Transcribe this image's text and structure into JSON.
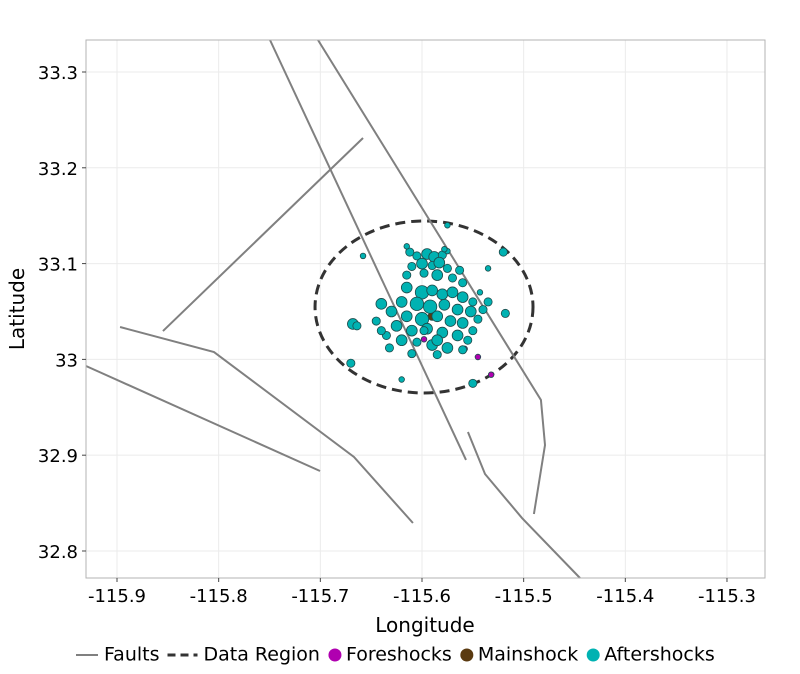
{
  "chart_data": {
    "type": "scatter",
    "xlabel": "Longitude",
    "ylabel": "Latitude",
    "xlim": [
      -115.9305,
      -115.2626
    ],
    "ylim": [
      32.7718,
      33.3334
    ],
    "xticks": [
      -115.9,
      -115.8,
      -115.7,
      -115.6,
      -115.5,
      -115.4,
      -115.3
    ],
    "yticks": [
      32.8,
      32.9,
      33,
      33.1,
      33.2,
      33.3
    ],
    "grid": true,
    "legend": "bottom",
    "series": [
      {
        "name": "Faults",
        "kind": "line",
        "color": "#808080",
        "lines": [
          {
            "x": [
              -115.7495,
              -115.5567
            ],
            "y": [
              33.3334,
              32.895
            ]
          },
          {
            "x": [
              -115.7023,
              -115.483,
              -115.479,
              -115.4899
            ],
            "y": [
              33.3334,
              32.9576,
              32.9106,
              32.8386
            ]
          },
          {
            "x": [
              -115.8548,
              -115.658
            ],
            "y": [
              33.0296,
              33.2311
            ]
          },
          {
            "x": [
              -115.897,
              -115.8046,
              -115.6669,
              -115.6089
            ],
            "y": [
              33.0338,
              33.0077,
              32.8981,
              32.8292
            ]
          },
          {
            "x": [
              -115.9305,
              -115.7003
            ],
            "y": [
              32.9931,
              32.8835
            ]
          },
          {
            "x": [
              -115.5548,
              -115.538,
              -115.5016,
              -115.4446
            ],
            "y": [
              32.9242,
              32.8804,
              32.8344,
              32.7718
            ]
          }
        ]
      },
      {
        "name": "Data Region",
        "kind": "ellipse",
        "color": "#333333",
        "center": [
          -115.598,
          33.0547
        ],
        "radius_x": 0.1072,
        "radius_y": 0.0898
      },
      {
        "name": "Foreshocks",
        "kind": "points",
        "color": "#b000b0",
        "x": [
          -115.545,
          -115.558,
          -115.532,
          -115.598
        ],
        "y": [
          33.0025,
          33.011,
          32.984,
          33.021
        ],
        "size": [
          1,
          1,
          1,
          1
        ]
      },
      {
        "name": "Mainshock",
        "kind": "points",
        "color": "#5a3a10",
        "x": [
          -115.59
        ],
        "y": [
          33.045
        ],
        "size": [
          2
        ]
      },
      {
        "name": "Aftershocks",
        "kind": "points",
        "color": "#00b2b2",
        "x": [
          -115.605,
          -115.595,
          -115.588,
          -115.58,
          -115.6,
          -115.59,
          -115.583,
          -115.61,
          -115.575,
          -115.598,
          -115.585,
          -115.57,
          -115.612,
          -115.575,
          -115.615,
          -115.6,
          -115.59,
          -115.58,
          -115.57,
          -115.56,
          -115.55,
          -115.62,
          -115.605,
          -115.592,
          -115.578,
          -115.565,
          -115.552,
          -115.63,
          -115.615,
          -115.6,
          -115.585,
          -115.572,
          -115.56,
          -115.545,
          -115.625,
          -115.61,
          -115.595,
          -115.58,
          -115.565,
          -115.55,
          -115.62,
          -115.605,
          -115.59,
          -115.575,
          -115.56,
          -115.585,
          -115.64,
          -115.645,
          -115.635,
          -115.632,
          -115.54,
          -115.535,
          -115.543,
          -115.56,
          -115.668,
          -115.664,
          -115.67,
          -115.658,
          -115.615,
          -115.64,
          -115.615,
          -115.575,
          -115.52,
          -115.518,
          -115.535,
          -115.55,
          -115.62,
          -115.598,
          -115.585,
          -115.555,
          -115.563,
          -115.578,
          -115.61
        ],
        "y": [
          33.108,
          33.11,
          33.107,
          33.109,
          33.1,
          33.098,
          33.101,
          33.097,
          33.095,
          33.09,
          33.088,
          33.085,
          33.112,
          33.113,
          33.075,
          33.07,
          33.072,
          33.068,
          33.07,
          33.065,
          33.06,
          33.06,
          33.058,
          33.055,
          33.057,
          33.052,
          33.05,
          33.05,
          33.045,
          33.042,
          33.045,
          33.04,
          33.038,
          33.042,
          33.035,
          33.03,
          33.032,
          33.028,
          33.025,
          33.03,
          33.02,
          33.018,
          33.015,
          33.012,
          33.01,
          33.005,
          33.058,
          33.04,
          33.025,
          33.012,
          33.052,
          33.06,
          33.07,
          33.08,
          33.037,
          33.035,
          32.996,
          33.108,
          33.088,
          33.03,
          33.118,
          33.14,
          33.112,
          33.048,
          33.095,
          32.975,
          32.979,
          33.03,
          33.02,
          33.02,
          33.093,
          33.115,
          33.006
        ],
        "size": [
          2,
          3,
          3,
          2,
          3,
          2,
          3,
          2,
          2,
          2,
          3,
          2,
          2,
          1,
          3,
          4,
          3,
          3,
          3,
          3,
          2,
          3,
          4,
          4,
          3,
          3,
          3,
          3,
          3,
          4,
          3,
          3,
          3,
          2,
          3,
          3,
          3,
          3,
          3,
          2,
          3,
          2,
          3,
          3,
          2,
          2,
          3,
          2,
          2,
          2,
          2,
          2,
          1,
          2,
          3,
          2,
          2,
          1,
          2,
          2,
          1,
          1,
          2,
          2,
          1,
          2,
          1,
          2,
          3,
          2,
          2,
          1,
          2
        ]
      }
    ]
  }
}
